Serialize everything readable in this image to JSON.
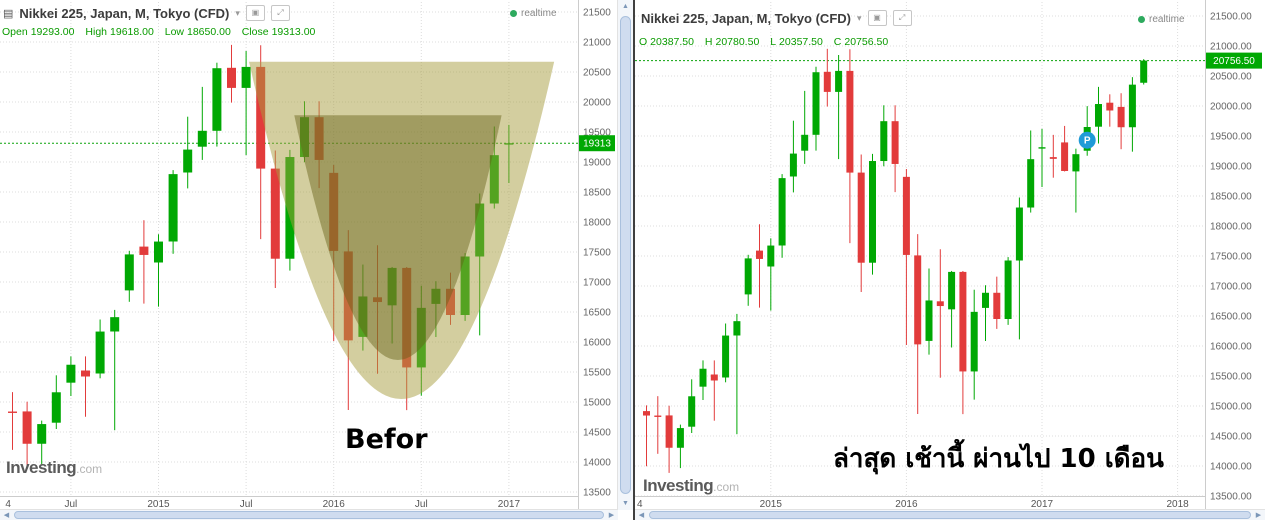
{
  "chart_data": [
    {
      "type": "candlestick",
      "panel": "before",
      "title": "Nikkei 225, Japan, M, Tokyo (CFD)",
      "title_caret": "▾",
      "realtime_label": "realtime",
      "ohlc": [
        {
          "label": "Open",
          "value": "19293.00"
        },
        {
          "label": "High",
          "value": "19618.00"
        },
        {
          "label": "Low",
          "value": "18650.00"
        },
        {
          "label": "Close",
          "value": "19313.00"
        }
      ],
      "annotation": "Befor",
      "watermark": {
        "brand": "Investing",
        "suffix": ".com"
      },
      "y_axis": {
        "min": 13500,
        "max": 21500,
        "step": 500,
        "tick_labels": [
          "21500",
          "21000",
          "20500",
          "20000",
          "19500",
          "19000",
          "18500",
          "18000",
          "17500",
          "17000",
          "16500",
          "16000",
          "15500",
          "15000",
          "14500",
          "14000",
          "13500"
        ]
      },
      "x_ticks": [
        {
          "i": -0.3,
          "label": "4",
          "grid": false
        },
        {
          "i": 4,
          "label": "Jul",
          "grid": true
        },
        {
          "i": 10,
          "label": "2015",
          "grid": true
        },
        {
          "i": 16,
          "label": "Jul",
          "grid": true
        },
        {
          "i": 22,
          "label": "2016",
          "grid": true
        },
        {
          "i": 28,
          "label": "Jul",
          "grid": true
        },
        {
          "i": 34,
          "label": "2017",
          "grid": true
        }
      ],
      "ohlc_format": [
        "open",
        "high",
        "low",
        "close"
      ],
      "candles": [
        [
          14841,
          15164,
          14203,
          14828
        ],
        [
          14843,
          15005,
          13885,
          14304
        ],
        [
          14304,
          14690,
          13965,
          14632
        ],
        [
          14655,
          15445,
          14550,
          15162
        ],
        [
          15322,
          15760,
          15100,
          15621
        ],
        [
          15525,
          15760,
          14755,
          15425
        ],
        [
          15475,
          16375,
          15395,
          16174
        ],
        [
          16175,
          16535,
          14530,
          16414
        ],
        [
          16860,
          17520,
          16670,
          17460
        ],
        [
          17590,
          18030,
          16640,
          17451
        ],
        [
          17325,
          17795,
          16590,
          17674
        ],
        [
          17675,
          18865,
          17470,
          18798
        ],
        [
          18825,
          19755,
          18560,
          19207
        ],
        [
          19255,
          20252,
          19035,
          19520
        ],
        [
          19520,
          20655,
          19257,
          20563
        ],
        [
          20570,
          20953,
          19990,
          20235
        ],
        [
          20235,
          20850,
          19115,
          20585
        ],
        [
          20585,
          20946,
          17714,
          18890
        ],
        [
          18890,
          19192,
          16901,
          17388
        ],
        [
          17388,
          19202,
          17190,
          19083
        ],
        [
          19083,
          20012,
          18995,
          19747
        ],
        [
          19747,
          20012,
          18565,
          19034
        ],
        [
          18819,
          18951,
          16017,
          17518
        ],
        [
          17510,
          17865,
          14866,
          16027
        ],
        [
          16085,
          17291,
          15857,
          16759
        ],
        [
          16745,
          17613,
          15471,
          16666
        ],
        [
          16611,
          17251,
          15975,
          17235
        ],
        [
          17235,
          17251,
          14864,
          15576
        ],
        [
          15576,
          16938,
          15106,
          16569
        ],
        [
          16635,
          17013,
          16083,
          16887
        ],
        [
          16887,
          17156,
          16285,
          16450
        ],
        [
          16450,
          17482,
          16352,
          17425
        ],
        [
          17425,
          18476,
          16111,
          18308
        ],
        [
          18308,
          19592,
          18224,
          19114
        ],
        [
          19293,
          19618,
          18650,
          19313
        ]
      ],
      "last_price": 19313,
      "last_price_label": "19313",
      "colors": {
        "up": "#00a803",
        "down": "#e23b3b",
        "price_tag_bg": "#00a803",
        "price_tag_text": "#ffffff",
        "grid": "#dcdcdc",
        "price_line": "#0aa30a"
      },
      "overlay": {
        "shape": "cup",
        "outer": {
          "p0": [
            16.2,
            20670
          ],
          "c": [
            26.6,
            9430
          ],
          "p2": [
            37.1,
            20670
          ],
          "fill": "rgba(167,157,63,0.5)"
        },
        "inner": {
          "p0": [
            19.3,
            19780
          ],
          "c": [
            26.4,
            11620
          ],
          "p2": [
            33.5,
            19780
          ],
          "fill": "rgba(99,95,22,0.45)"
        }
      }
    },
    {
      "type": "candlestick",
      "panel": "after",
      "title": "Nikkei 225, Japan, M, Tokyo (CFD)",
      "title_caret": "▾",
      "realtime_label": "realtime",
      "ohlc": [
        {
          "label": "O",
          "value": "20387.50"
        },
        {
          "label": "H",
          "value": "20780.50"
        },
        {
          "label": "L",
          "value": "20357.50"
        },
        {
          "label": "C",
          "value": "20756.50"
        }
      ],
      "annotation": "ล่าสุด เช้านี้ ผ่านไป 10 เดือน",
      "watermark": {
        "brand": "Investing",
        "suffix": ".com"
      },
      "y_axis": {
        "min": 13500,
        "max": 21500,
        "step": 500,
        "tick_labels": [
          "21500.00",
          "21000.00",
          "20500.00",
          "20000.00",
          "19500.00",
          "19000.00",
          "18500.00",
          "18000.00",
          "17500.00",
          "17000.00",
          "16500.00",
          "16000.00",
          "15500.00",
          "15000.00",
          "14500.00",
          "14000.00",
          "13500.00"
        ]
      },
      "x_ticks": [
        {
          "i": -0.6,
          "label": "4",
          "grid": false
        },
        {
          "i": 11,
          "label": "2015",
          "grid": true
        },
        {
          "i": 23,
          "label": "2016",
          "grid": true
        },
        {
          "i": 35,
          "label": "2017",
          "grid": true
        },
        {
          "i": 47,
          "label": "2018",
          "grid": true
        }
      ],
      "ohlc_format": [
        "open",
        "high",
        "low",
        "close"
      ],
      "candles": [
        [
          14915,
          15010,
          13995,
          14841
        ],
        [
          14841,
          15164,
          14203,
          14828
        ],
        [
          14843,
          15005,
          13885,
          14304
        ],
        [
          14304,
          14690,
          13965,
          14632
        ],
        [
          14655,
          15445,
          14550,
          15162
        ],
        [
          15322,
          15760,
          15100,
          15621
        ],
        [
          15525,
          15760,
          14755,
          15425
        ],
        [
          15475,
          16375,
          15395,
          16174
        ],
        [
          16175,
          16535,
          14530,
          16414
        ],
        [
          16860,
          17520,
          16670,
          17460
        ],
        [
          17590,
          18030,
          16640,
          17451
        ],
        [
          17325,
          17795,
          16590,
          17674
        ],
        [
          17675,
          18865,
          17470,
          18798
        ],
        [
          18825,
          19755,
          18560,
          19207
        ],
        [
          19255,
          20252,
          19035,
          19520
        ],
        [
          19520,
          20655,
          19257,
          20563
        ],
        [
          20570,
          20953,
          19990,
          20235
        ],
        [
          20235,
          20850,
          19115,
          20585
        ],
        [
          20585,
          20946,
          17714,
          18890
        ],
        [
          18890,
          19192,
          16901,
          17388
        ],
        [
          17388,
          19202,
          17190,
          19083
        ],
        [
          19083,
          20012,
          18995,
          19747
        ],
        [
          19747,
          20012,
          18565,
          19034
        ],
        [
          18819,
          18951,
          16017,
          17518
        ],
        [
          17510,
          17865,
          14866,
          16027
        ],
        [
          16085,
          17291,
          15857,
          16759
        ],
        [
          16745,
          17613,
          15471,
          16666
        ],
        [
          16611,
          17251,
          15975,
          17235
        ],
        [
          17235,
          17251,
          14864,
          15576
        ],
        [
          15576,
          16938,
          15106,
          16569
        ],
        [
          16635,
          17013,
          16083,
          16887
        ],
        [
          16887,
          17156,
          16285,
          16450
        ],
        [
          16450,
          17482,
          16352,
          17425
        ],
        [
          17425,
          18476,
          16111,
          18308
        ],
        [
          18308,
          19592,
          18224,
          19114
        ],
        [
          19293,
          19618,
          18650,
          19313
        ],
        [
          19148,
          19519,
          18805,
          19119
        ],
        [
          19393,
          19668,
          18909,
          18917
        ],
        [
          18910,
          19289,
          18224,
          19197
        ],
        [
          19254,
          19998,
          19171,
          19650
        ],
        [
          19655,
          20318,
          19376,
          20033
        ],
        [
          20055,
          20195,
          19655,
          19925
        ],
        [
          19985,
          20213,
          19280,
          19646
        ],
        [
          19646,
          20481,
          19239,
          20356
        ],
        [
          20387.5,
          20780.5,
          20357.5,
          20756.5
        ]
      ],
      "last_price": 20756.5,
      "last_price_label": "20756.50",
      "colors": {
        "up": "#00a803",
        "down": "#e23b3b",
        "price_tag_bg": "#00a803",
        "price_tag_text": "#ffffff",
        "grid": "#dcdcdc",
        "price_line": "#0aa30a"
      },
      "marker": {
        "i": 39,
        "price": 19430,
        "label": "P",
        "color": "#1f9bd7"
      }
    }
  ]
}
